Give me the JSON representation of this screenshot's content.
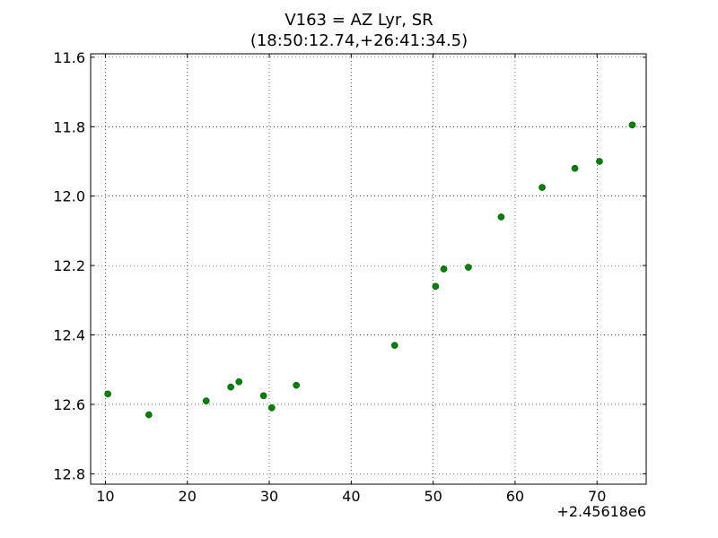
{
  "chart_data": {
    "type": "scatter",
    "title": "V163 = AZ Lyr, SR",
    "subtitle": "(18:50:12.74,+26:41:34.5)",
    "xlabel": "",
    "ylabel": "",
    "x_offset_label": "+2.45618e6",
    "xlim": [
      8.2,
      76.0
    ],
    "ylim": [
      12.83,
      11.59
    ],
    "y_inverted": true,
    "grid": true,
    "xticks": [
      10,
      20,
      30,
      40,
      50,
      60,
      70
    ],
    "xtick_labels": [
      "10",
      "20",
      "30",
      "40",
      "50",
      "60",
      "70"
    ],
    "yticks": [
      11.6,
      11.8,
      12.0,
      12.2,
      12.4,
      12.6,
      12.8
    ],
    "ytick_labels": [
      "11.6",
      "11.8",
      "12.0",
      "12.2",
      "12.4",
      "12.6",
      "12.8"
    ],
    "marker_color": "#008000",
    "series": [
      {
        "x": [
          10.3,
          15.3,
          22.3,
          25.3,
          26.3,
          29.3,
          30.3,
          33.3,
          45.3,
          50.3,
          51.3,
          54.3,
          58.3,
          63.3,
          67.3,
          70.3,
          74.3
        ],
        "y": [
          12.57,
          12.63,
          12.59,
          12.55,
          12.535,
          12.575,
          12.61,
          12.545,
          12.43,
          12.26,
          12.21,
          12.205,
          12.06,
          11.975,
          11.92,
          11.9,
          11.795
        ]
      }
    ]
  }
}
